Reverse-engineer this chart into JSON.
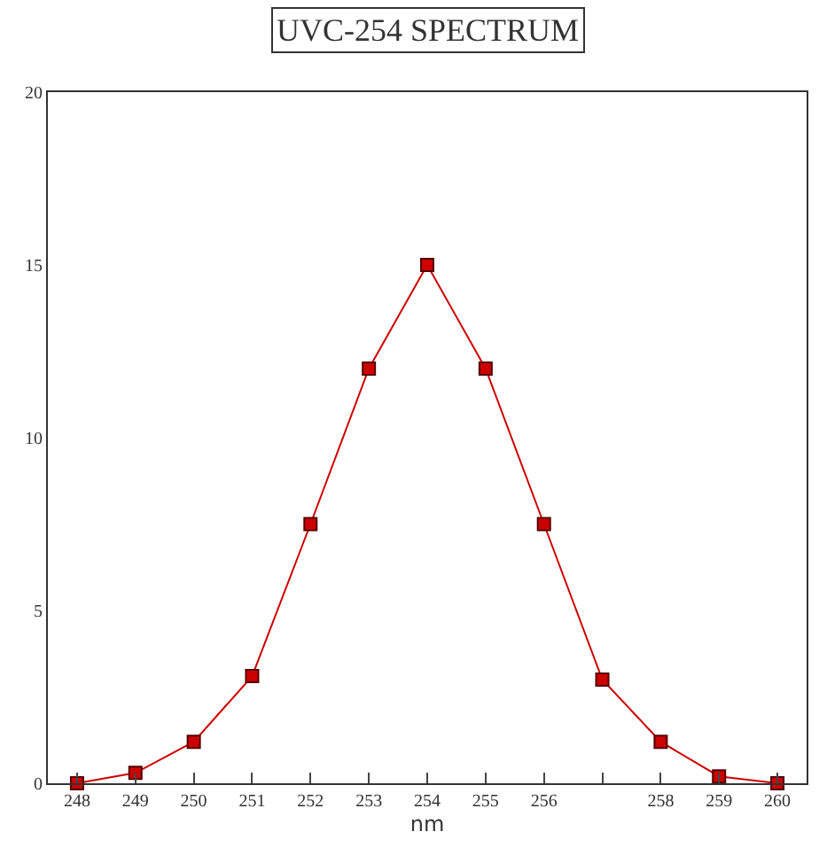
{
  "chart_data": {
    "type": "line",
    "title": "UVC-254 SPECTRUM",
    "xlabel": "nm",
    "x": [
      248,
      249,
      250,
      251,
      252,
      253,
      254,
      255,
      256,
      257,
      258,
      259,
      260
    ],
    "series": [
      {
        "color": "#cc0000",
        "values": [
          0,
          0.3,
          1.2,
          3.1,
          7.5,
          12,
          15,
          12,
          7.5,
          3.0,
          1.2,
          0.2,
          0
        ]
      }
    ],
    "xlim": [
      247.5,
      260.5
    ],
    "xticks": [
      248,
      249,
      250,
      251,
      252,
      253,
      254,
      255,
      256,
      {
        "value": 257,
        "label": null
      },
      258,
      259,
      260
    ],
    "ylim": [
      0,
      20
    ],
    "yticks": [
      0,
      5,
      10,
      15,
      20
    ],
    "legend": false,
    "marker": "square",
    "line_style": "solid"
  }
}
